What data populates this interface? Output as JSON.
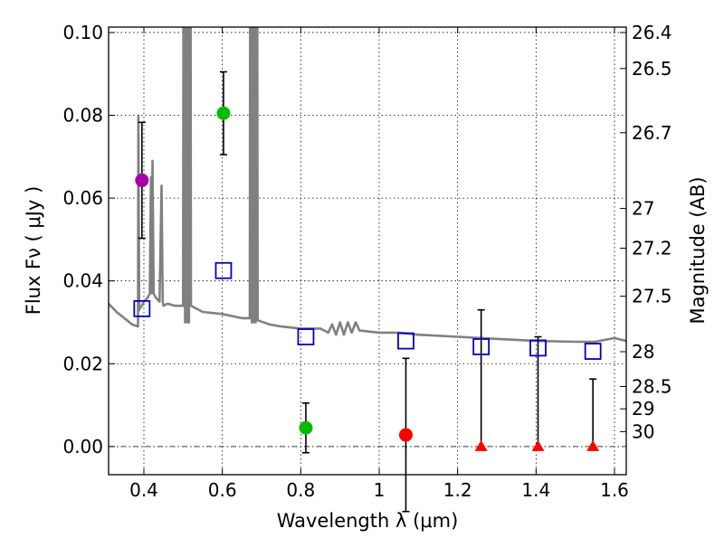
{
  "chart_data": {
    "type": "scatter",
    "xlabel": "Wavelength  λ (μm)",
    "ylabel": "Flux  Fν  ( μJy )",
    "y2label": "Magnitude (AB)",
    "xlim": [
      0.31,
      1.63
    ],
    "ylim": [
      -0.0068,
      0.1013
    ],
    "grid": true,
    "xticks": [
      {
        "value": 0.4,
        "label": "0.4"
      },
      {
        "value": 0.6,
        "label": "0.6"
      },
      {
        "value": 0.8,
        "label": "0.8"
      },
      {
        "value": 1.0,
        "label": "1"
      },
      {
        "value": 1.2,
        "label": "1.2"
      },
      {
        "value": 1.4,
        "label": "1.4"
      },
      {
        "value": 1.6,
        "label": "1.6"
      }
    ],
    "yticks": [
      {
        "value": 0.0,
        "label": "0.00"
      },
      {
        "value": 0.02,
        "label": "0.02"
      },
      {
        "value": 0.04,
        "label": "0.04"
      },
      {
        "value": 0.06,
        "label": "0.06"
      },
      {
        "value": 0.08,
        "label": "0.08"
      },
      {
        "value": 0.1,
        "label": "0.10"
      }
    ],
    "y2ticks": [
      {
        "flux": 0.1,
        "label": "26.4"
      },
      {
        "flux": 0.0913,
        "label": "26.5"
      },
      {
        "flux": 0.0758,
        "label": "26.7"
      },
      {
        "flux": 0.0575,
        "label": "27"
      },
      {
        "flux": 0.0479,
        "label": "27.2"
      },
      {
        "flux": 0.0363,
        "label": "27.5"
      },
      {
        "flux": 0.0229,
        "label": "28"
      },
      {
        "flux": 0.0145,
        "label": "28.5"
      },
      {
        "flux": 0.0091,
        "label": "29"
      },
      {
        "flux": 0.0036,
        "label": "30"
      }
    ],
    "series": [
      {
        "name": "model-sed",
        "kind": "line",
        "color": "#808080",
        "x": [
          0.31,
          0.33,
          0.35,
          0.37,
          0.385,
          0.386,
          0.388,
          0.39,
          0.395,
          0.4,
          0.41,
          0.415,
          0.418,
          0.42,
          0.422,
          0.425,
          0.43,
          0.44,
          0.445,
          0.448,
          0.45,
          0.46,
          0.48,
          0.5,
          0.502,
          0.505,
          0.508,
          0.51,
          0.512,
          0.515,
          0.518,
          0.52,
          0.55,
          0.6,
          0.65,
          0.67,
          0.672,
          0.675,
          0.678,
          0.68,
          0.682,
          0.685,
          0.688,
          0.69,
          0.72,
          0.75,
          0.8,
          0.85,
          0.87,
          0.88,
          0.89,
          0.9,
          0.91,
          0.92,
          0.93,
          0.94,
          0.95,
          1.0,
          1.05,
          1.1,
          1.2,
          1.3,
          1.4,
          1.5,
          1.55,
          1.6,
          1.63
        ],
        "y": [
          0.0345,
          0.0325,
          0.031,
          0.0295,
          0.029,
          0.08,
          0.033,
          0.0335,
          0.034,
          0.035,
          0.036,
          0.037,
          0.065,
          0.037,
          0.069,
          0.037,
          0.036,
          0.035,
          0.063,
          0.035,
          0.034,
          0.0345,
          0.034,
          0.034,
          0.2,
          0.03,
          0.2,
          0.03,
          0.2,
          0.03,
          0.2,
          0.034,
          0.0325,
          0.032,
          0.031,
          0.031,
          0.2,
          0.03,
          0.2,
          0.03,
          0.2,
          0.03,
          0.2,
          0.0305,
          0.0295,
          0.029,
          0.0285,
          0.0285,
          0.0275,
          0.0295,
          0.027,
          0.03,
          0.027,
          0.03,
          0.0275,
          0.03,
          0.028,
          0.0275,
          0.0275,
          0.027,
          0.0265,
          0.026,
          0.0255,
          0.0253,
          0.0253,
          0.0262,
          0.0255
        ]
      },
      {
        "name": "magenta-point",
        "kind": "circle",
        "color": "#aa00aa",
        "x": [
          0.395
        ],
        "y": [
          0.0643
        ],
        "yerr": [
          0.014
        ]
      },
      {
        "name": "green-points",
        "kind": "circle",
        "color": "#00bb00",
        "x": [
          0.603,
          0.813
        ],
        "y": [
          0.0805,
          0.0045
        ],
        "yerr": [
          0.01,
          0.006
        ]
      },
      {
        "name": "red-point",
        "kind": "circle",
        "color": "#ff0000",
        "x": [
          1.068
        ],
        "y": [
          0.0028
        ],
        "yerr": [
          0.0185
        ]
      },
      {
        "name": "upper-limits",
        "kind": "triangle",
        "color": "#ff0000",
        "x": [
          1.26,
          1.405,
          1.545
        ],
        "y": [
          0.0,
          0.0,
          0.0
        ],
        "yerr_up": [
          0.033,
          0.0265,
          0.0163
        ]
      },
      {
        "name": "model-photometry",
        "kind": "square",
        "color": "#0000cc",
        "x": [
          0.395,
          0.603,
          0.813,
          1.068,
          1.26,
          1.405,
          1.545
        ],
        "y": [
          0.0333,
          0.0425,
          0.0265,
          0.0255,
          0.0241,
          0.0238,
          0.023
        ]
      }
    ]
  }
}
